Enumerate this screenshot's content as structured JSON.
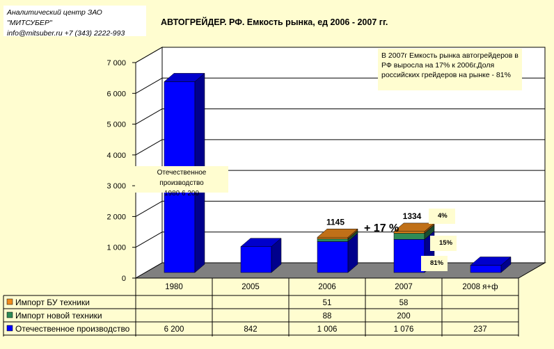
{
  "source": {
    "line1": "Аналитический центр ЗАО \"МИТСУБЕР\"",
    "line2": "info@mitsuber.ru +7 (343) 2222-993"
  },
  "chart_data": {
    "type": "bar",
    "stacked": true,
    "title": "АВТОГРЕЙДЕР. РФ. Емкость рынка, ед 2006 - 2007 гг.",
    "categories": [
      "1980",
      "2005",
      "2006",
      "2007",
      "2008 я+ф"
    ],
    "ylim": [
      0,
      7000
    ],
    "y_ticks": [
      "0",
      "1 000",
      "2 000",
      "3 000",
      "4 000",
      "5 000",
      "6 000",
      "7 000"
    ],
    "grid": true,
    "series": [
      {
        "name": "Отечественное производство",
        "color": "#0000ff",
        "values": [
          6200,
          842,
          1006,
          1076,
          237
        ],
        "labels": [
          "6 200",
          "842",
          "1 006",
          "1 076",
          "237"
        ]
      },
      {
        "name": "Импорт новой техники",
        "color": "#2e8b57",
        "values": [
          0,
          0,
          88,
          200,
          0
        ],
        "labels": [
          "",
          "",
          "88",
          "200",
          ""
        ]
      },
      {
        "name": "Импорт БУ техники",
        "color": "#f08c1e",
        "values": [
          0,
          0,
          51,
          58,
          0
        ],
        "labels": [
          "",
          "",
          "51",
          "58",
          ""
        ]
      }
    ],
    "totals": [
      {
        "category": "2006",
        "label": "1145"
      },
      {
        "category": "2007",
        "label": "1334"
      }
    ],
    "share_labels": [
      {
        "series": "Импорт БУ техники",
        "text": "4%"
      },
      {
        "series": "Импорт новой техники",
        "text": "15%"
      },
      {
        "series": "Отечественное производство",
        "text": "81%"
      }
    ],
    "growth_label": "+ 17 %",
    "annotation": "В 2007г Емкость рынка автогрейдеров в РФ выросла на 17% к 2006г.Доля российских грейдеров на рынке - 81%",
    "callout": {
      "line1": "Отечественное производство",
      "line2": "1980 6 200"
    }
  },
  "colors": {
    "plot_background": "#fffdd0",
    "floor": "#808080",
    "bar_main": "#0000ff"
  }
}
